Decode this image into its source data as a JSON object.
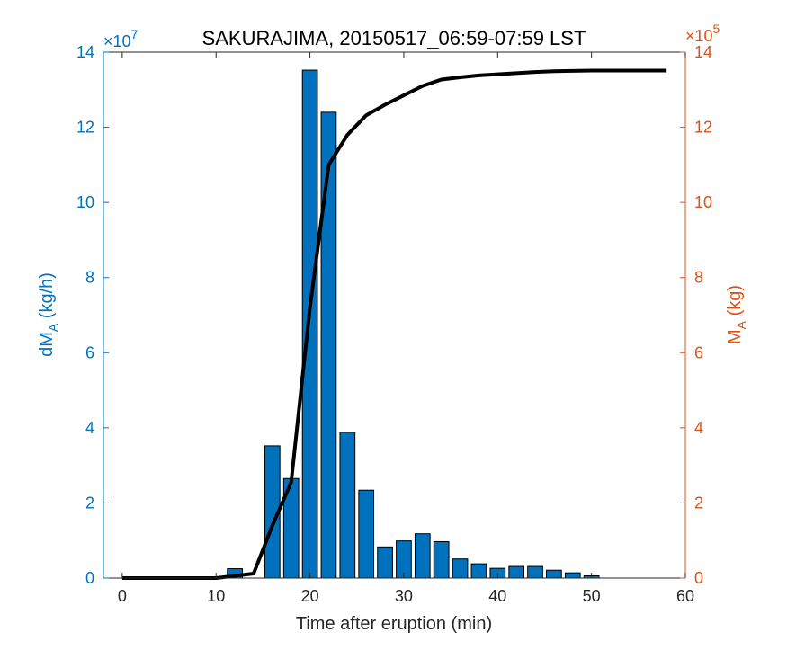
{
  "chart_data": {
    "type": "bar",
    "title": "SAKURAJIMA, 20150517_06:59-07:59 LST",
    "xlabel": "Time after eruption (min)",
    "xlim": [
      -2,
      60
    ],
    "xticks": [
      0,
      10,
      20,
      30,
      40,
      50,
      60
    ],
    "left_axis": {
      "label_main": "dM",
      "label_sub": "A",
      "label_unit": " (kg/h)",
      "ylim": [
        0,
        14
      ],
      "ticks": [
        0,
        2,
        4,
        6,
        8,
        10,
        12,
        14
      ],
      "exponent_base": "×10",
      "exponent_power": "7",
      "color": "#0072BD"
    },
    "right_axis": {
      "label_main": "M",
      "label_sub": "A",
      "label_unit": " (kg)",
      "ylim": [
        0,
        14
      ],
      "ticks": [
        0,
        2,
        4,
        6,
        8,
        10,
        12,
        14
      ],
      "exponent_base": "×10",
      "exponent_power": "5",
      "color": "#D95319"
    },
    "bars": {
      "axis": "left",
      "color": "#0072BD",
      "x": [
        12,
        16,
        18,
        20,
        22,
        24,
        26,
        28,
        30,
        32,
        34,
        36,
        38,
        40,
        42,
        44,
        46,
        48,
        50
      ],
      "values": [
        0.25,
        3.52,
        2.65,
        13.52,
        12.4,
        3.88,
        2.34,
        0.83,
        0.99,
        1.18,
        0.97,
        0.51,
        0.38,
        0.26,
        0.31,
        0.31,
        0.21,
        0.14,
        0.06
      ]
    },
    "line": {
      "axis": "right",
      "color": "#000000",
      "x": [
        0,
        10,
        12,
        14,
        16,
        18,
        20,
        22,
        24,
        26,
        28,
        30,
        32,
        34,
        36,
        38,
        40,
        42,
        44,
        46,
        48,
        50,
        52,
        54,
        56,
        58
      ],
      "values": [
        0,
        0,
        0.06,
        0.12,
        1.4,
        2.55,
        7.2,
        11.0,
        11.8,
        12.32,
        12.6,
        12.85,
        13.1,
        13.27,
        13.33,
        13.38,
        13.41,
        13.44,
        13.47,
        13.49,
        13.5,
        13.51,
        13.51,
        13.51,
        13.51,
        13.51
      ]
    },
    "grid": false,
    "legend": "none"
  }
}
